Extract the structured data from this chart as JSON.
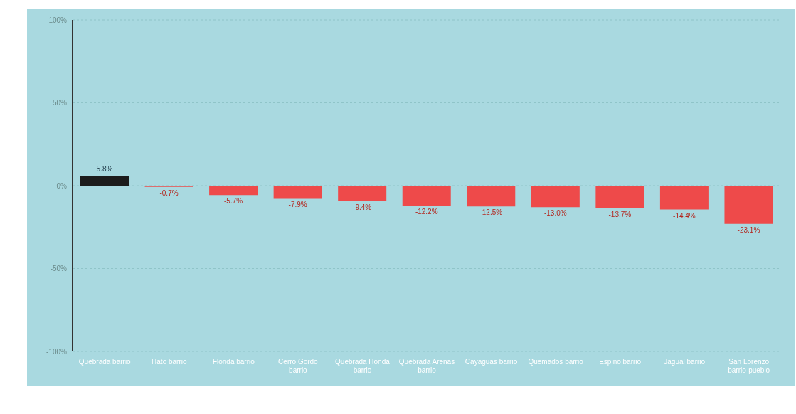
{
  "chart_data": {
    "type": "bar",
    "categories": [
      "Quebrada barrio",
      "Hato barrio",
      "Florida barrio",
      "Cerro Gordo barrio",
      "Quebrada Honda barrio",
      "Quebrada Arenas barrio",
      "Cayaguas barrio",
      "Quemados barrio",
      "Espino barrio",
      "Jagual barrio",
      "San Lorenzo barrio-pueblo"
    ],
    "values": [
      5.8,
      -0.7,
      -5.7,
      -7.9,
      -9.4,
      -12.2,
      -12.5,
      -13.0,
      -13.7,
      -14.4,
      -23.1
    ],
    "colors": [
      "#1c1c1c",
      "#ee4a4a",
      "#ee4a4a",
      "#ee4a4a",
      "#ee4a4a",
      "#ee4a4a",
      "#ee4a4a",
      "#ee4a4a",
      "#ee4a4a",
      "#ee4a4a",
      "#ee4a4a"
    ],
    "value_labels": [
      "5.8%",
      "-0.7%",
      "-5.7%",
      "-7.9%",
      "-9.4%",
      "-12.2%",
      "-12.5%",
      "-13.0%",
      "-13.7%",
      "-14.4%",
      "-23.1%"
    ],
    "ylim": [
      -100,
      100
    ],
    "yticks": [
      {
        "value": -100,
        "label": "-100%"
      },
      {
        "value": -50,
        "label": "-50%"
      },
      {
        "value": 0,
        "label": "0%"
      },
      {
        "value": 50,
        "label": "50%"
      },
      {
        "value": 100,
        "label": "100%"
      }
    ],
    "grid": "y"
  }
}
